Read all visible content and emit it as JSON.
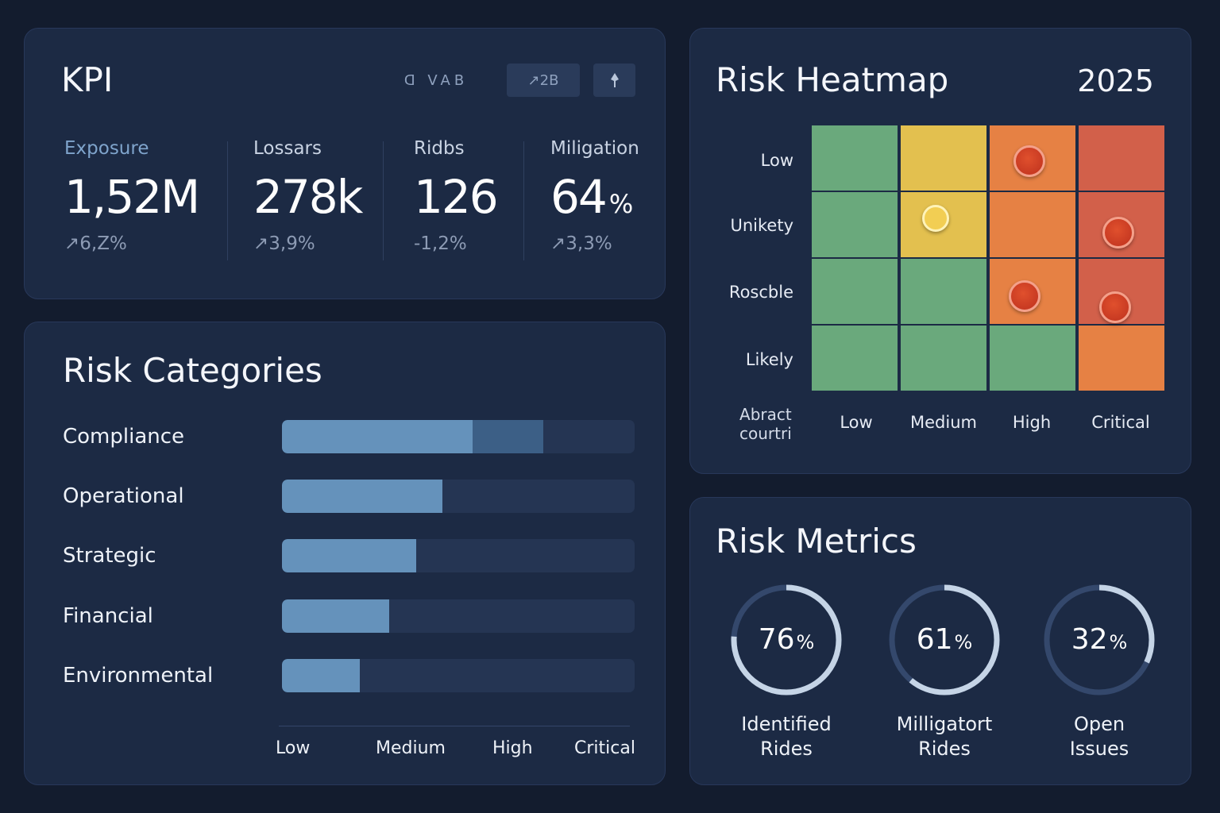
{
  "kpi": {
    "title": "KPI",
    "toolbar": {
      "text": "ᗡ VAB",
      "button1": "↗2B",
      "button2_icon": "pin-icon"
    },
    "items": [
      {
        "label": "Exposure",
        "value": "1,52M",
        "unit": "",
        "change": "↗6,Z%"
      },
      {
        "label": "Lossars",
        "value": "278k",
        "unit": "",
        "change": "↗3,9%"
      },
      {
        "label": "Ridbs",
        "value": "126",
        "unit": "",
        "change": "-1,2%"
      },
      {
        "label": "Miligation",
        "value": "64",
        "unit": "%",
        "change": "↗3,3%"
      }
    ]
  },
  "categories": {
    "title": "Risk Categories",
    "items": [
      {
        "label": "Compliance",
        "fill": 0.54,
        "secondary": 0.2
      },
      {
        "label": "Operational",
        "fill": 0.455,
        "secondary": 0
      },
      {
        "label": "Strategic",
        "fill": 0.38,
        "secondary": 0
      },
      {
        "label": "Financial",
        "fill": 0.305,
        "secondary": 0
      },
      {
        "label": "Environmental",
        "fill": 0.22,
        "secondary": 0
      }
    ],
    "axis": [
      "Low",
      "Medium",
      "High",
      "Critical"
    ]
  },
  "heatmap": {
    "title": "Risk Heatmap",
    "year": "2025",
    "rows": [
      "Low",
      "Unikety",
      "Roscble",
      "Likely"
    ],
    "columns": [
      "Low",
      "Medium",
      "High",
      "Critical"
    ],
    "corner_label": [
      "Abract",
      "courtri"
    ],
    "colors": {
      "green": "#6aa97c",
      "yellow": "#e3c04f",
      "orange": "#e68144",
      "red": "#d2604a"
    },
    "cells": [
      [
        "green",
        "yellow",
        "orange",
        "red"
      ],
      [
        "green",
        "yellow",
        "orange",
        "red"
      ],
      [
        "green",
        "green",
        "orange",
        "red"
      ],
      [
        "green",
        "green",
        "green",
        "orange"
      ]
    ],
    "markers": [
      {
        "row": 0,
        "col": 2,
        "kind": "red"
      },
      {
        "row": 1,
        "col": 1,
        "kind": "yellow"
      },
      {
        "row": 1,
        "col": 3,
        "kind": "red"
      },
      {
        "row": 2,
        "col": 2,
        "kind": "red"
      },
      {
        "row": 2,
        "col": 3,
        "kind": "red"
      }
    ]
  },
  "metrics": {
    "title": "Risk Metrics",
    "items": [
      {
        "value": "76",
        "unit": "%",
        "fraction": 0.76,
        "label_line1": "Identified",
        "label_line2": "Rides"
      },
      {
        "value": "61",
        "unit": "%",
        "fraction": 0.61,
        "label_line1": "Milligatort",
        "label_line2": "Rides"
      },
      {
        "value": "32",
        "unit": "%",
        "fraction": 0.32,
        "label_line1": "Open",
        "label_line2": "Issues"
      }
    ]
  }
}
